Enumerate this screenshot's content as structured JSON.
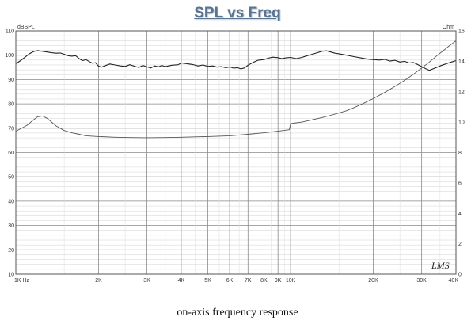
{
  "page": {
    "title": "SPL vs Freq",
    "caption": "on-axis frequency response",
    "watermark": "LMS"
  },
  "chart_data": {
    "type": "line",
    "title": "SPL vs Freq",
    "xscale": "log",
    "xlim": [
      1000,
      40000
    ],
    "x_ticks": [
      {
        "value": 1000,
        "label": "1K Hz"
      },
      {
        "value": 2000,
        "label": "2K"
      },
      {
        "value": 3000,
        "label": "3K"
      },
      {
        "value": 4000,
        "label": "4K"
      },
      {
        "value": 5000,
        "label": "5K"
      },
      {
        "value": 6000,
        "label": "6K"
      },
      {
        "value": 7000,
        "label": "7K"
      },
      {
        "value": 8000,
        "label": "8K"
      },
      {
        "value": 9000,
        "label": "9K"
      },
      {
        "value": 10000,
        "label": "10K"
      },
      {
        "value": 20000,
        "label": "20K"
      },
      {
        "value": 30000,
        "label": "30K"
      },
      {
        "value": 40000,
        "label": "40K"
      }
    ],
    "y_left": {
      "unit": "dBSPL",
      "lim": [
        10,
        110
      ],
      "ticks": [
        10,
        20,
        30,
        40,
        50,
        60,
        70,
        80,
        90,
        100,
        110
      ]
    },
    "y_right": {
      "unit": "Ohm",
      "lim": [
        0,
        16
      ],
      "ticks": [
        0,
        2,
        4,
        6,
        8,
        10,
        12,
        14,
        16
      ]
    },
    "grid": true,
    "series": [
      {
        "axis": "left",
        "color": "#222222",
        "x": [
          1000,
          1040,
          1080,
          1120,
          1160,
          1200,
          1250,
          1300,
          1350,
          1400,
          1450,
          1500,
          1550,
          1600,
          1650,
          1700,
          1750,
          1800,
          1850,
          1900,
          1950,
          2000,
          2050,
          2100,
          2200,
          2300,
          2400,
          2500,
          2600,
          2700,
          2800,
          2900,
          3000,
          3100,
          3200,
          3300,
          3400,
          3500,
          3700,
          3900,
          4000,
          4200,
          4400,
          4600,
          4800,
          5000,
          5200,
          5400,
          5600,
          5800,
          6000,
          6200,
          6400,
          6600,
          6800,
          7000,
          7300,
          7600,
          8000,
          8300,
          8600,
          9000,
          9300,
          9600,
          10000,
          10500,
          11000,
          11500,
          12000,
          12500,
          13000,
          13500,
          14000,
          14500,
          15000,
          16000,
          17000,
          18000,
          19000,
          20000,
          21000,
          22000,
          23000,
          24000,
          25000,
          26000,
          27000,
          28000,
          29000,
          30000,
          31000,
          32000,
          33000,
          34000,
          35000,
          36000,
          37000,
          38000,
          39000,
          40000
        ],
        "y": [
          96.5,
          97.8,
          99.2,
          100.6,
          101.5,
          101.9,
          101.6,
          101.3,
          101.0,
          100.8,
          100.9,
          100.4,
          99.8,
          99.6,
          99.8,
          98.6,
          97.8,
          98.2,
          97.4,
          96.7,
          96.9,
          95.5,
          95.1,
          95.6,
          96.4,
          96.0,
          95.6,
          95.4,
          96.1,
          95.5,
          95.0,
          95.8,
          95.2,
          94.8,
          95.6,
          95.2,
          95.8,
          95.3,
          95.9,
          96.1,
          96.8,
          96.5,
          96.2,
          95.6,
          96.0,
          95.4,
          95.6,
          95.1,
          95.3,
          94.9,
          95.2,
          94.7,
          94.9,
          94.4,
          94.8,
          95.9,
          97.0,
          97.9,
          98.2,
          98.8,
          99.2,
          99.0,
          98.6,
          98.9,
          99.1,
          98.6,
          99.1,
          99.8,
          100.4,
          101.0,
          101.6,
          101.8,
          101.3,
          100.8,
          100.6,
          100.0,
          99.4,
          98.9,
          98.4,
          98.2,
          98.0,
          98.3,
          97.6,
          97.9,
          97.2,
          97.5,
          96.8,
          97.0,
          96.2,
          95.3,
          94.5,
          93.8,
          94.4,
          95.0,
          95.6,
          96.1,
          96.5,
          97.0,
          97.4,
          97.8
        ]
      },
      {
        "axis": "right",
        "color": "#555555",
        "x": [
          1000,
          1100,
          1150,
          1200,
          1250,
          1300,
          1350,
          1400,
          1500,
          1600,
          1700,
          1800,
          2000,
          2300,
          2600,
          3000,
          3500,
          4000,
          5000,
          6000,
          7000,
          8000,
          9000,
          9900,
          10000,
          11000,
          12000,
          13000,
          14000,
          15000,
          16000,
          17000,
          18000,
          19000,
          20000,
          22000,
          24000,
          26000,
          28000,
          30000,
          32000,
          34000,
          36000,
          38000,
          40000
        ],
        "y": [
          9.4,
          9.8,
          10.1,
          10.35,
          10.4,
          10.25,
          10.0,
          9.75,
          9.45,
          9.3,
          9.2,
          9.1,
          9.05,
          9.0,
          8.98,
          8.97,
          8.98,
          9.0,
          9.05,
          9.1,
          9.2,
          9.3,
          9.4,
          9.5,
          9.9,
          10.0,
          10.15,
          10.3,
          10.45,
          10.6,
          10.75,
          10.95,
          11.15,
          11.35,
          11.55,
          11.95,
          12.35,
          12.75,
          13.15,
          13.55,
          13.95,
          14.35,
          14.7,
          15.05,
          15.35
        ]
      }
    ]
  }
}
